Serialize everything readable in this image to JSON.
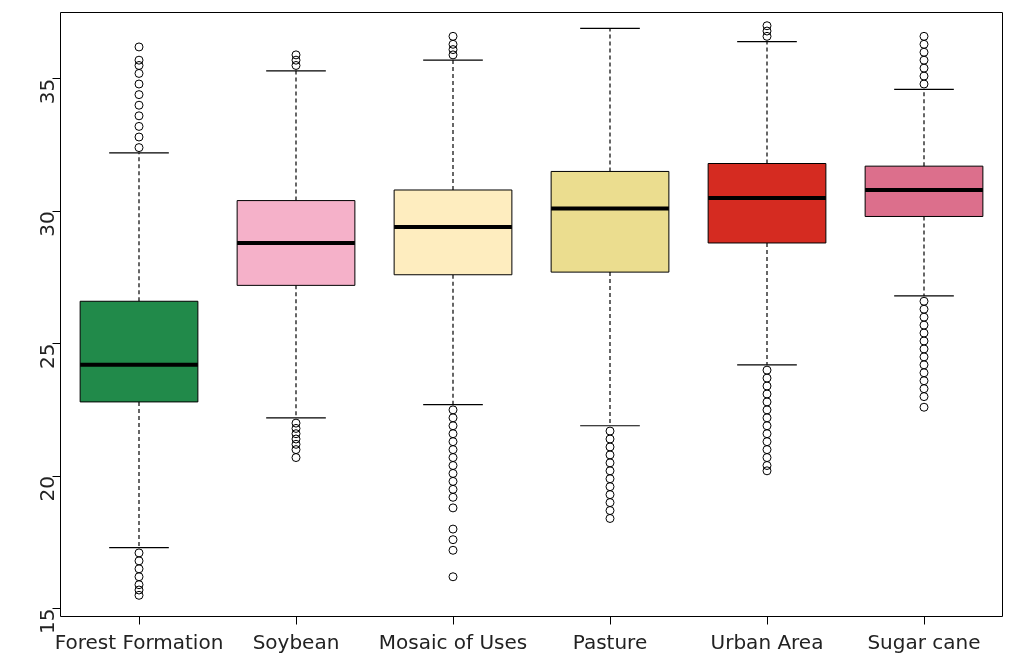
{
  "chart_data": {
    "type": "box",
    "categories": [
      "Forest Formation",
      "Soybean",
      "Mosaic of Uses",
      "Pasture",
      "Urban Area",
      "Sugar cane"
    ],
    "colors": [
      "#218a4a",
      "#f5b1c9",
      "#feedbf",
      "#ebdd8f",
      "#d52b21",
      "#dc6f8c"
    ],
    "boxes": [
      {
        "low": 17.3,
        "q1": 22.8,
        "median": 24.2,
        "q3": 26.6,
        "high": 32.2,
        "outliers": [
          32.4,
          32.8,
          33.2,
          33.6,
          34.0,
          34.4,
          34.8,
          35.2,
          35.5,
          35.7,
          36.2,
          17.1,
          16.8,
          16.5,
          16.2,
          15.9,
          15.7,
          15.5
        ]
      },
      {
        "low": 22.2,
        "q1": 27.2,
        "median": 28.8,
        "q3": 30.4,
        "high": 35.3,
        "outliers": [
          35.5,
          35.7,
          35.9,
          22.0,
          21.8,
          21.6,
          21.4,
          21.2,
          21.0,
          20.7
        ]
      },
      {
        "low": 22.7,
        "q1": 27.6,
        "median": 29.4,
        "q3": 30.8,
        "high": 35.7,
        "outliers": [
          35.9,
          36.1,
          36.3,
          36.6,
          22.5,
          22.2,
          21.9,
          21.6,
          21.3,
          21.0,
          20.7,
          20.4,
          20.1,
          19.8,
          19.5,
          19.2,
          18.8,
          18.0,
          17.6,
          17.2,
          16.2
        ]
      },
      {
        "low": 21.9,
        "q1": 27.7,
        "median": 30.1,
        "q3": 31.5,
        "high": 36.9,
        "outliers": [
          21.7,
          21.4,
          21.1,
          20.8,
          20.5,
          20.2,
          19.9,
          19.6,
          19.3,
          19.0,
          18.7,
          18.4
        ]
      },
      {
        "low": 24.2,
        "q1": 28.8,
        "median": 30.5,
        "q3": 31.8,
        "high": 36.4,
        "outliers": [
          36.6,
          36.8,
          37.0,
          24.0,
          23.7,
          23.4,
          23.1,
          22.8,
          22.5,
          22.2,
          21.9,
          21.6,
          21.3,
          21.0,
          20.7,
          20.4,
          20.2
        ]
      },
      {
        "low": 26.8,
        "q1": 29.8,
        "median": 30.8,
        "q3": 31.7,
        "high": 34.6,
        "outliers": [
          34.8,
          35.1,
          35.4,
          35.7,
          36.0,
          36.3,
          36.6,
          26.6,
          26.3,
          26.0,
          25.7,
          25.4,
          25.1,
          24.8,
          24.5,
          24.2,
          23.9,
          23.6,
          23.3,
          23.0,
          22.6
        ]
      }
    ],
    "ylim": [
      14.7,
      37.5
    ],
    "yticks": [
      15,
      20,
      25,
      30,
      35
    ],
    "grid": false
  }
}
